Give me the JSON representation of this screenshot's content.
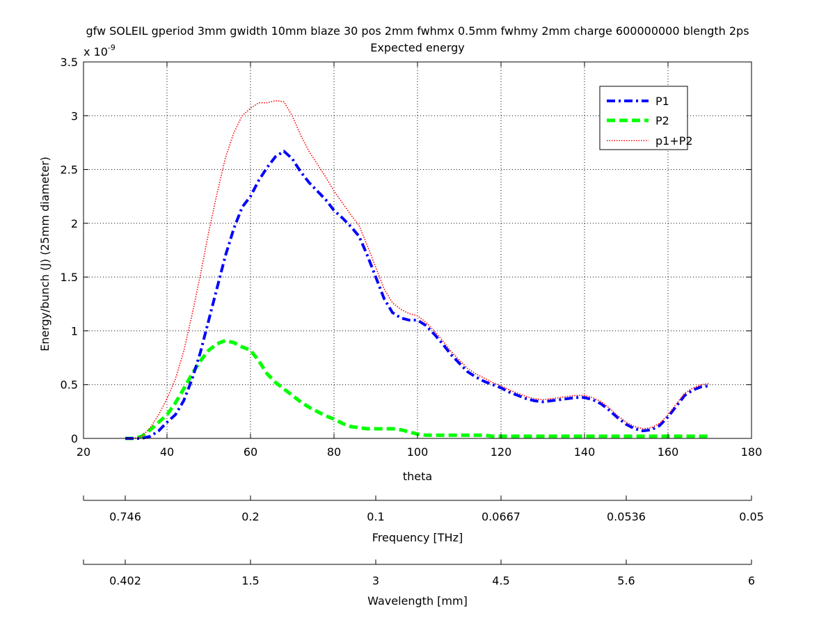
{
  "chart_data": {
    "type": "line",
    "title": "gfw SOLEIL gperiod 3mm gwidth 10mm blaze 30 pos 2mm fwhmx 0.5mm fwhmy 2mm charge 600000000 blength 2ps",
    "subtitle": "Expected energy",
    "xlabel": "theta",
    "ylabel": "Energy/bunch (J) (25mm diameter)",
    "y_exponent_label": "x 10",
    "y_exponent_power": "-9",
    "xlim": [
      20,
      180
    ],
    "ylim": [
      0,
      3.5
    ],
    "y_scale": 1e-09,
    "grid": true,
    "legend_position": "top-right",
    "x_ticks": [
      20,
      40,
      60,
      80,
      100,
      120,
      140,
      160,
      180
    ],
    "x_tick_labels": [
      "20",
      "40",
      "60",
      "80",
      "100",
      "120",
      "140",
      "160",
      "180"
    ],
    "y_ticks": [
      0,
      0.5,
      1,
      1.5,
      2,
      2.5,
      3,
      3.5
    ],
    "y_tick_labels": [
      "0",
      "0.5",
      "1",
      "1.5",
      "2",
      "2.5",
      "3",
      "3.5"
    ],
    "x": [
      30,
      32,
      34,
      36,
      38,
      40,
      42,
      44,
      46,
      48,
      50,
      52,
      54,
      56,
      58,
      60,
      62,
      64,
      66,
      68,
      70,
      72,
      74,
      76,
      78,
      80,
      82,
      84,
      86,
      88,
      90,
      92,
      94,
      96,
      98,
      100,
      102,
      104,
      106,
      108,
      110,
      112,
      114,
      116,
      118,
      120,
      122,
      124,
      126,
      128,
      130,
      132,
      134,
      136,
      138,
      140,
      142,
      144,
      146,
      148,
      150,
      152,
      154,
      156,
      158,
      160,
      162,
      164,
      166,
      168,
      170
    ],
    "series": [
      {
        "name": "P1",
        "color": "#0000ff",
        "style": "dashdot",
        "values": [
          0.0,
          0.0,
          0.0,
          0.02,
          0.07,
          0.15,
          0.22,
          0.35,
          0.55,
          0.8,
          1.1,
          1.4,
          1.7,
          1.95,
          2.15,
          2.25,
          2.4,
          2.52,
          2.62,
          2.67,
          2.6,
          2.48,
          2.38,
          2.3,
          2.22,
          2.12,
          2.05,
          1.97,
          1.88,
          1.7,
          1.5,
          1.3,
          1.17,
          1.12,
          1.1,
          1.1,
          1.05,
          0.97,
          0.88,
          0.78,
          0.7,
          0.62,
          0.57,
          0.53,
          0.5,
          0.47,
          0.43,
          0.4,
          0.37,
          0.35,
          0.34,
          0.35,
          0.36,
          0.37,
          0.38,
          0.38,
          0.36,
          0.32,
          0.26,
          0.19,
          0.13,
          0.09,
          0.07,
          0.08,
          0.12,
          0.2,
          0.3,
          0.4,
          0.45,
          0.48,
          0.49
        ]
      },
      {
        "name": "P2",
        "color": "#00ff00",
        "style": "dashed",
        "values": [
          0.0,
          0.0,
          0.02,
          0.08,
          0.15,
          0.22,
          0.33,
          0.46,
          0.6,
          0.72,
          0.82,
          0.88,
          0.91,
          0.89,
          0.85,
          0.82,
          0.72,
          0.6,
          0.52,
          0.46,
          0.4,
          0.34,
          0.29,
          0.25,
          0.21,
          0.18,
          0.14,
          0.11,
          0.1,
          0.09,
          0.09,
          0.09,
          0.09,
          0.08,
          0.06,
          0.04,
          0.03,
          0.03,
          0.03,
          0.03,
          0.03,
          0.03,
          0.03,
          0.03,
          0.02,
          0.02,
          0.02,
          0.02,
          0.02,
          0.02,
          0.02,
          0.02,
          0.02,
          0.02,
          0.02,
          0.02,
          0.02,
          0.02,
          0.02,
          0.02,
          0.02,
          0.02,
          0.02,
          0.02,
          0.02,
          0.02,
          0.02,
          0.02,
          0.02,
          0.02,
          0.02
        ]
      },
      {
        "name": "p1+P2",
        "color": "#ff0000",
        "style": "dotted",
        "values": [
          0.0,
          0.0,
          0.02,
          0.1,
          0.22,
          0.37,
          0.55,
          0.81,
          1.15,
          1.52,
          1.92,
          2.28,
          2.61,
          2.84,
          3.0,
          3.07,
          3.12,
          3.12,
          3.14,
          3.13,
          3.0,
          2.82,
          2.67,
          2.55,
          2.43,
          2.3,
          2.19,
          2.08,
          1.98,
          1.79,
          1.59,
          1.39,
          1.26,
          1.2,
          1.16,
          1.14,
          1.08,
          1.0,
          0.91,
          0.81,
          0.73,
          0.65,
          0.6,
          0.56,
          0.52,
          0.49,
          0.45,
          0.42,
          0.39,
          0.37,
          0.36,
          0.37,
          0.38,
          0.39,
          0.4,
          0.4,
          0.38,
          0.34,
          0.28,
          0.21,
          0.15,
          0.11,
          0.09,
          0.1,
          0.14,
          0.22,
          0.32,
          0.42,
          0.47,
          0.5,
          0.51
        ]
      }
    ],
    "secondary_axes": [
      {
        "label": "Frequency [THz]",
        "tick_positions_theta": [
          30,
          60,
          90,
          120,
          150,
          180
        ],
        "tick_labels": [
          "0.746",
          "0.2",
          "0.1",
          "0.0667",
          "0.0536",
          "0.05"
        ]
      },
      {
        "label": "Wavelength [mm]",
        "tick_positions_theta": [
          30,
          60,
          90,
          120,
          150,
          180
        ],
        "tick_labels": [
          "0.402",
          "1.5",
          "3",
          "4.5",
          "5.6",
          "6"
        ]
      }
    ]
  }
}
